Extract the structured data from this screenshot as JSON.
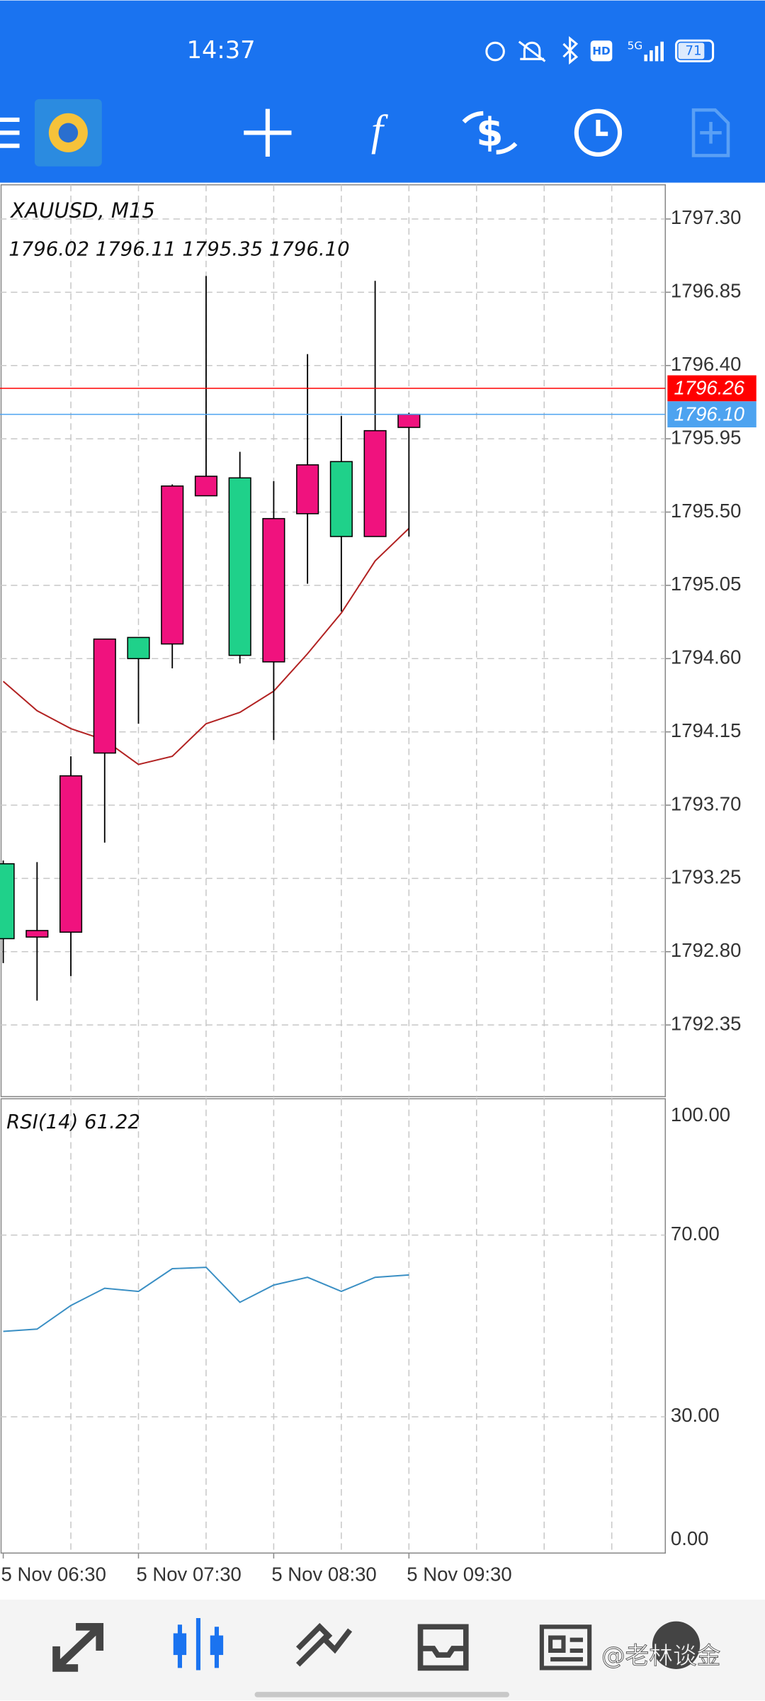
{
  "status_bar": {
    "time": "14:37",
    "network": "5G",
    "hd": "HD",
    "battery": "71"
  },
  "chart_data": {
    "type": "candlestick",
    "title": "XAUUSD, M15",
    "ohlc_label": "1796.02 1796.11 1795.35 1796.10",
    "up_color": "#f0127e",
    "down_color": "#1fd18a",
    "grid": true,
    "categories": [
      "5 Nov 06:30",
      null,
      null,
      null,
      "5 Nov 07:30",
      null,
      null,
      null,
      "5 Nov 08:30",
      null,
      null,
      null,
      "5 Nov 09:30"
    ],
    "candles": [
      {
        "open": 1793.34,
        "high": 1793.36,
        "low": 1792.73,
        "close": 1792.88
      },
      {
        "open": 1792.89,
        "high": 1793.35,
        "low": 1792.5,
        "close": 1792.93
      },
      {
        "open": 1792.92,
        "high": 1794.0,
        "low": 1792.65,
        "close": 1793.88
      },
      {
        "open": 1794.02,
        "high": 1794.72,
        "low": 1793.47,
        "close": 1794.72
      },
      {
        "open": 1794.73,
        "high": 1794.73,
        "low": 1794.2,
        "close": 1794.6
      },
      {
        "open": 1794.69,
        "high": 1795.67,
        "low": 1794.54,
        "close": 1795.66
      },
      {
        "open": 1795.6,
        "high": 1796.95,
        "low": 1795.6,
        "close": 1795.72
      },
      {
        "open": 1795.71,
        "high": 1795.87,
        "low": 1794.57,
        "close": 1794.62
      },
      {
        "open": 1794.58,
        "high": 1795.69,
        "low": 1794.1,
        "close": 1795.46
      },
      {
        "open": 1795.49,
        "high": 1796.47,
        "low": 1795.06,
        "close": 1795.79
      },
      {
        "open": 1795.81,
        "high": 1796.09,
        "low": 1794.89,
        "close": 1795.35
      },
      {
        "open": 1795.35,
        "high": 1796.92,
        "low": 1795.35,
        "close": 1796.0
      },
      {
        "open": 1796.02,
        "high": 1796.11,
        "low": 1795.35,
        "close": 1796.1
      }
    ],
    "ma": {
      "color": "#b22222",
      "values": [
        1794.46,
        1794.28,
        1794.17,
        1794.1,
        1793.95,
        1794.0,
        1794.2,
        1794.27,
        1794.4,
        1794.63,
        1794.88,
        1795.2,
        1795.4
      ]
    },
    "price_lines": [
      {
        "value": 1796.26,
        "label": "1796.26",
        "color": "#ff0000"
      },
      {
        "value": 1796.1,
        "label": "1796.10",
        "color": "#4da3f0"
      }
    ],
    "ylim": [
      1791.91,
      1797.51
    ],
    "yticks": [
      {
        "value": 1797.3,
        "label": "1797.30"
      },
      {
        "value": 1796.85,
        "label": "1796.85"
      },
      {
        "value": 1796.4,
        "label": "1796.40"
      },
      {
        "value": 1795.95,
        "label": "1795.95"
      },
      {
        "value": 1795.5,
        "label": "1795.50"
      },
      {
        "value": 1795.05,
        "label": "1795.05"
      },
      {
        "value": 1794.6,
        "label": "1794.60"
      },
      {
        "value": 1794.15,
        "label": "1794.15"
      },
      {
        "value": 1793.7,
        "label": "1793.70"
      },
      {
        "value": 1793.25,
        "label": "1793.25"
      },
      {
        "value": 1792.8,
        "label": "1792.80"
      },
      {
        "value": 1792.35,
        "label": "1792.35"
      }
    ],
    "rsi": {
      "label": "RSI(14) 61.22",
      "color": "#3a8fc4",
      "values": [
        48.8,
        49.3,
        54.5,
        58.3,
        57.6,
        62.6,
        62.9,
        55.2,
        59.0,
        60.7,
        57.6,
        60.7,
        61.22
      ],
      "ylim": [
        0,
        100
      ],
      "yticks": [
        {
          "value": 100,
          "label": "100.00"
        },
        {
          "value": 70,
          "label": "70.00"
        },
        {
          "value": 30,
          "label": "30.00"
        },
        {
          "value": 0,
          "label": "0.00"
        }
      ]
    }
  },
  "watermark": "@老林谈金"
}
